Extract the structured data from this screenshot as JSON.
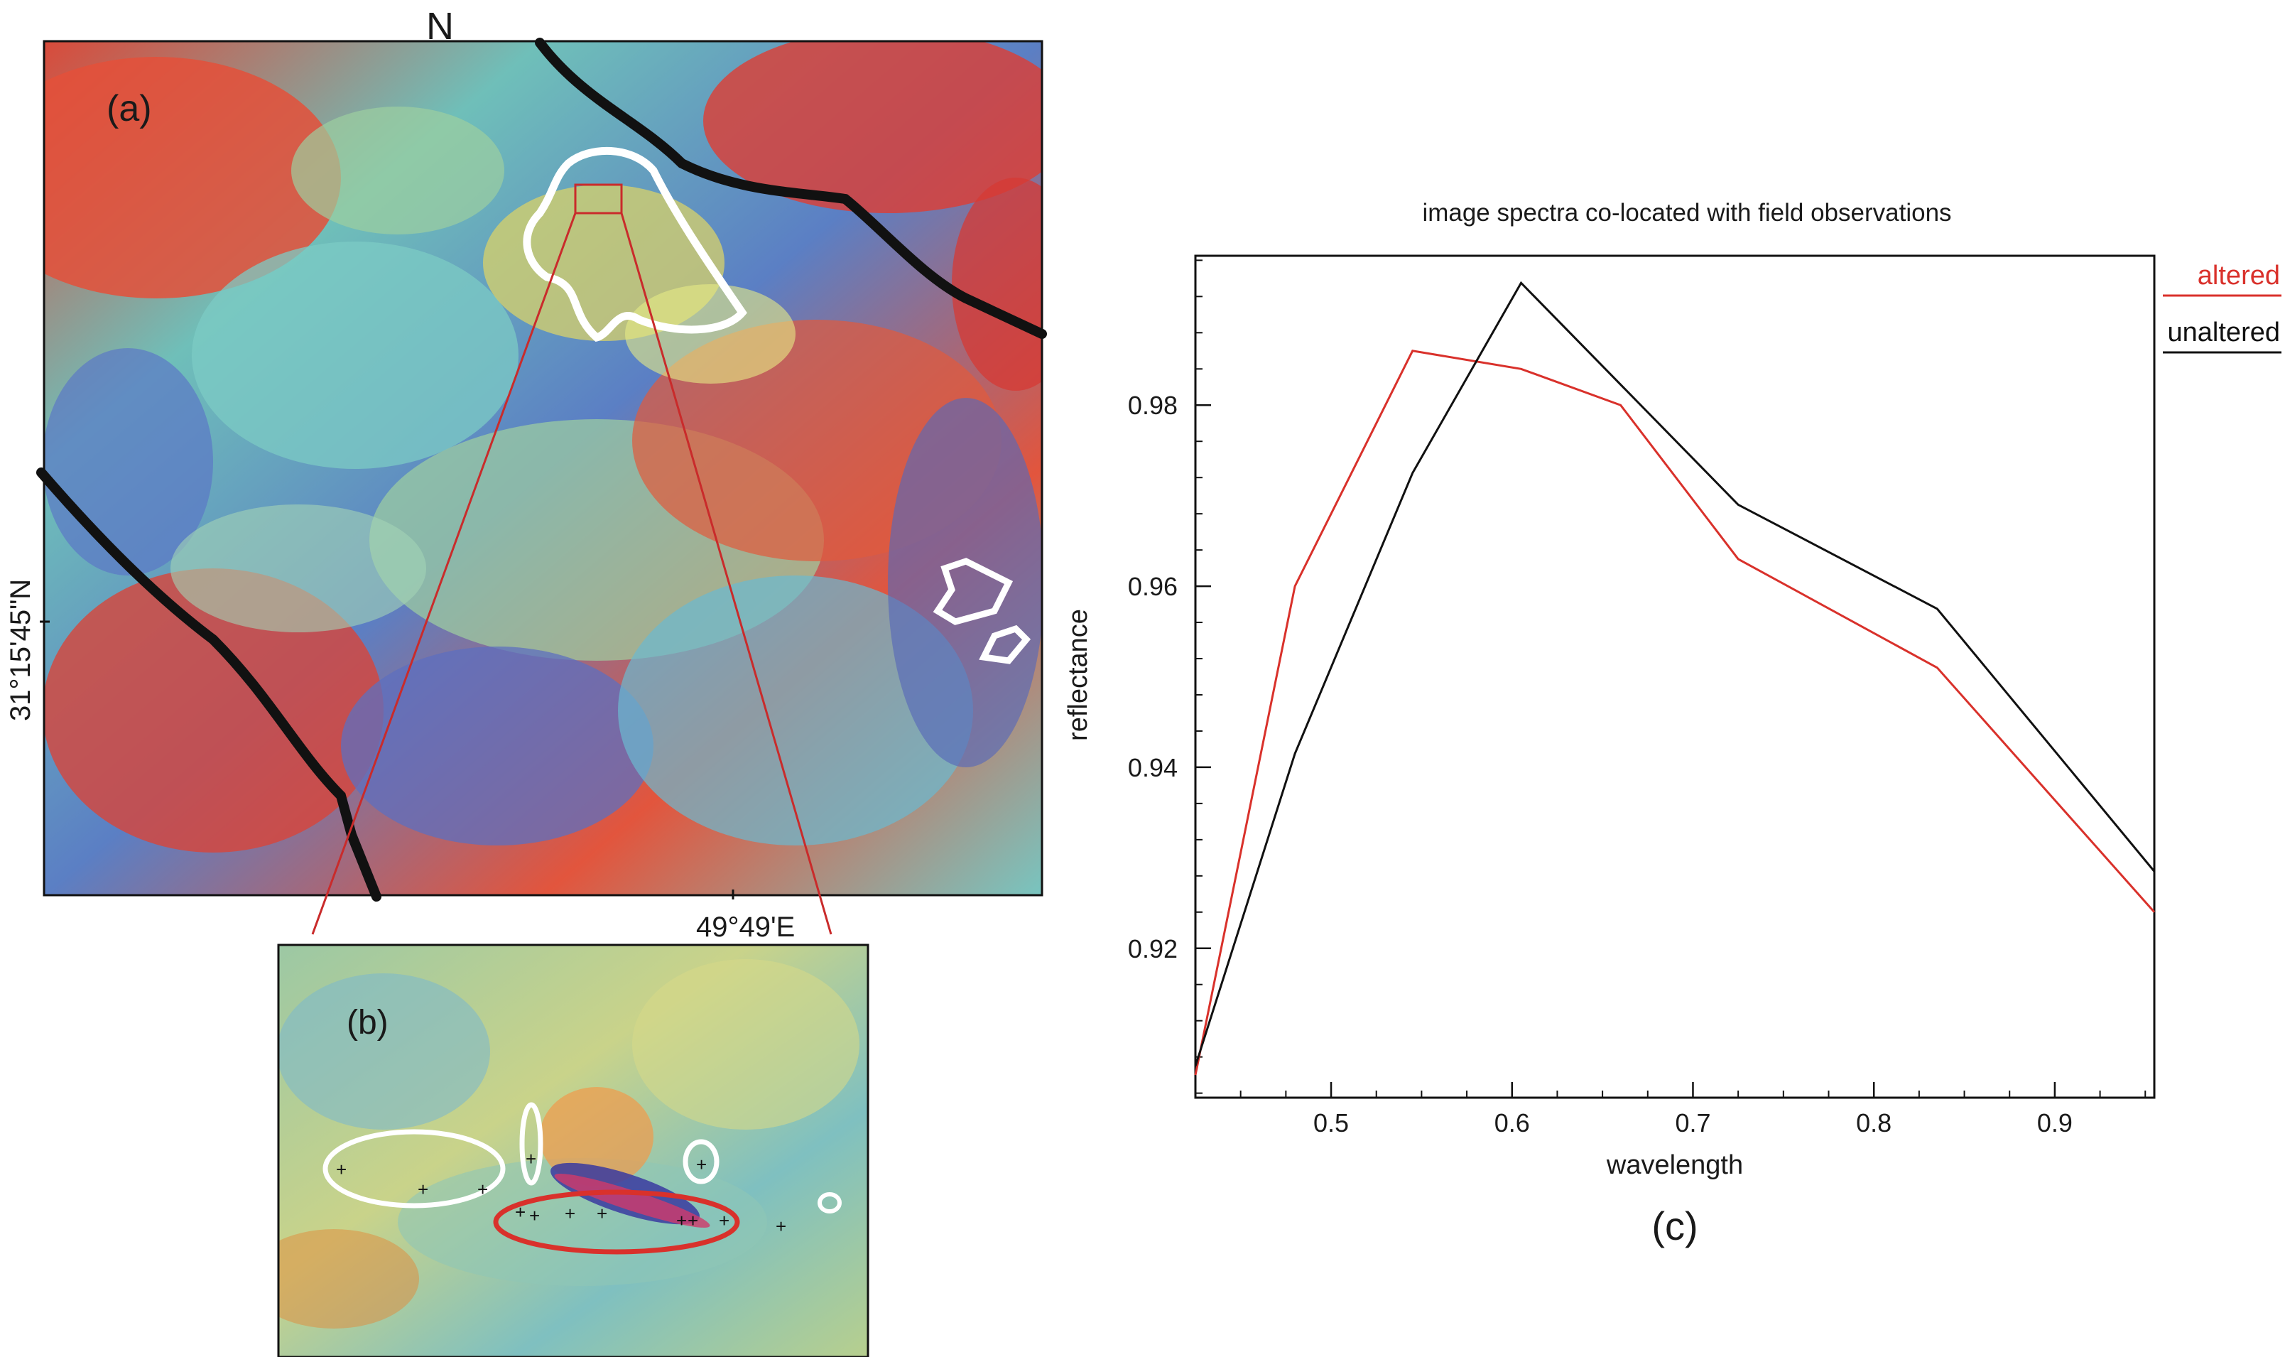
{
  "map": {
    "panel_label": "(a)",
    "north_label": "N",
    "lat_label": "31°15'45\"N",
    "lon_label": "49°49'E"
  },
  "inset": {
    "panel_label": "(b)"
  },
  "chart_data": {
    "type": "line",
    "title": "image spectra co-located with field observations",
    "xlabel": "wavelength",
    "ylabel": "reflectance",
    "panel_label": "(c)",
    "xlim": [
      0.425,
      0.955
    ],
    "ylim": [
      0.9035,
      0.9965
    ],
    "xticks": [
      0.5,
      0.6,
      0.7,
      0.8,
      0.9
    ],
    "yticks": [
      0.92,
      0.94,
      0.96,
      0.98
    ],
    "xtick_labels": [
      "0.5",
      "0.6",
      "0.7",
      "0.8",
      "0.9"
    ],
    "ytick_labels": [
      "0.92",
      "0.94",
      "0.96",
      "0.98"
    ],
    "grid": false,
    "legend_position": "top-right",
    "series": [
      {
        "name": "altered",
        "color": "#d9312b",
        "x": [
          0.425,
          0.48,
          0.545,
          0.605,
          0.66,
          0.725,
          0.835,
          0.955
        ],
        "y": [
          0.906,
          0.96,
          0.986,
          0.984,
          0.98,
          0.963,
          0.951,
          0.924
        ]
      },
      {
        "name": "unaltered",
        "color": "#111111",
        "x": [
          0.425,
          0.48,
          0.545,
          0.605,
          0.725,
          0.835,
          0.955
        ],
        "y": [
          0.907,
          0.9415,
          0.9725,
          0.9935,
          0.969,
          0.9575,
          0.9285
        ]
      }
    ]
  }
}
